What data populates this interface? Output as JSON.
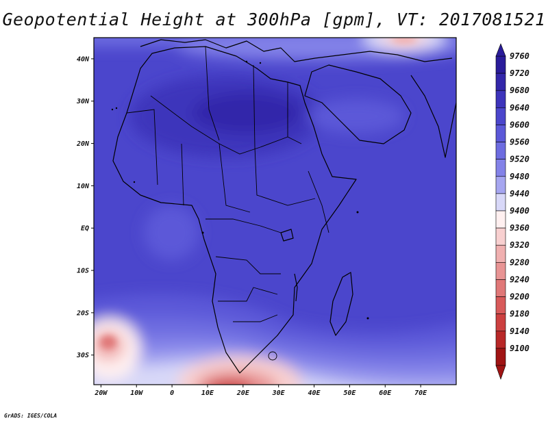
{
  "title": "Geopotential Height at 300hPa [gpm], VT: 2017081521",
  "credit": "GrADS: IGES/COLA",
  "map": {
    "lon_range": [
      -22,
      80
    ],
    "lat_range": [
      -37,
      45
    ],
    "lat_ticks": [
      {
        "value": 40,
        "label": "40N"
      },
      {
        "value": 30,
        "label": "30N"
      },
      {
        "value": 20,
        "label": "20N"
      },
      {
        "value": 10,
        "label": "10N"
      },
      {
        "value": 0,
        "label": "EQ"
      },
      {
        "value": -10,
        "label": "10S"
      },
      {
        "value": -20,
        "label": "20S"
      },
      {
        "value": -30,
        "label": "30S"
      }
    ],
    "lon_ticks": [
      {
        "value": -20,
        "label": "20W"
      },
      {
        "value": -10,
        "label": "10W"
      },
      {
        "value": 0,
        "label": "0"
      },
      {
        "value": 10,
        "label": "10E"
      },
      {
        "value": 20,
        "label": "20E"
      },
      {
        "value": 30,
        "label": "30E"
      },
      {
        "value": 40,
        "label": "40E"
      },
      {
        "value": 50,
        "label": "50E"
      },
      {
        "value": 60,
        "label": "60E"
      },
      {
        "value": 70,
        "label": "70E"
      }
    ],
    "background_color": "#4b46cc"
  },
  "legend": {
    "levels": [
      {
        "label": "9760",
        "color": "#2a1c9a"
      },
      {
        "label": "9720",
        "color": "#3327aa"
      },
      {
        "label": "9680",
        "color": "#3d34bb"
      },
      {
        "label": "9640",
        "color": "#4b46cc"
      },
      {
        "label": "9600",
        "color": "#5b58d8"
      },
      {
        "label": "9560",
        "color": "#6d6ce0"
      },
      {
        "label": "9520",
        "color": "#8382e8"
      },
      {
        "label": "9480",
        "color": "#a6a6f0"
      },
      {
        "label": "9440",
        "color": "#d8d8f8"
      },
      {
        "label": "9400",
        "color": "#fff0f0"
      },
      {
        "label": "9360",
        "color": "#f8d0d0"
      },
      {
        "label": "9320",
        "color": "#f0b0b0"
      },
      {
        "label": "9280",
        "color": "#e89494"
      },
      {
        "label": "9240",
        "color": "#e07878"
      },
      {
        "label": "9200",
        "color": "#d85a5a"
      },
      {
        "label": "9180",
        "color": "#cc4040"
      },
      {
        "label": "9140",
        "color": "#b82828"
      },
      {
        "label": "9100",
        "color": "#a01414"
      }
    ]
  }
}
